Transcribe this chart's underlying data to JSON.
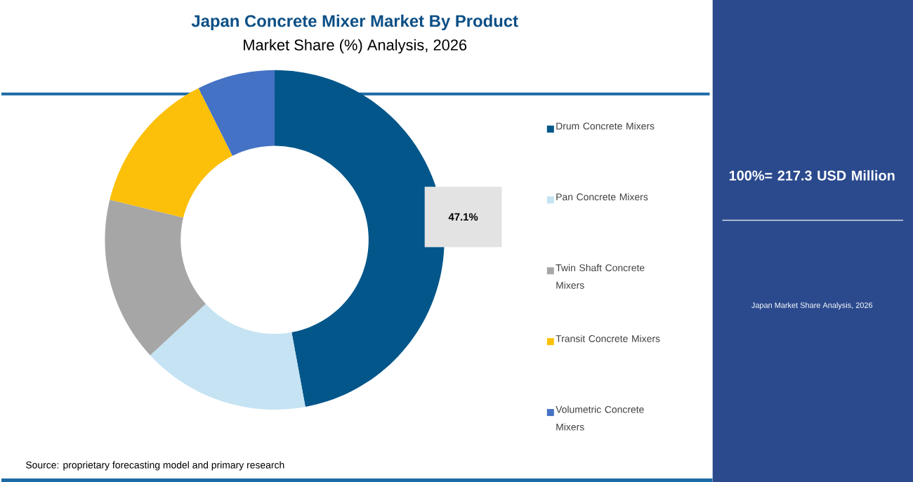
{
  "chart_data": {
    "type": "donut",
    "title": "Japan Concrete Mixer Market By Product",
    "subtitle": "Market Share (%) Analysis, 2026",
    "categories": [
      "Drum Concrete Mixers",
      "Pan Concrete Mixers",
      "Twin Shaft Concrete Mixers",
      "Transit Concrete Mixers",
      "Volumetric Concrete Mixers"
    ],
    "values": [
      47.1,
      16.0,
      15.7,
      13.8,
      7.4
    ],
    "colors": [
      "#02568a",
      "#c5e3f3",
      "#a6a6a6",
      "#fcc00a",
      "#4472c4"
    ],
    "value_labels": [
      "47.1%",
      null,
      null,
      null,
      null
    ],
    "legend": "right",
    "annotations": [
      "100%= 217.3 USD Million",
      "Japan Market Share Analysis, 2026",
      "Source: proprietary forecasting model and primary research"
    ]
  }
}
